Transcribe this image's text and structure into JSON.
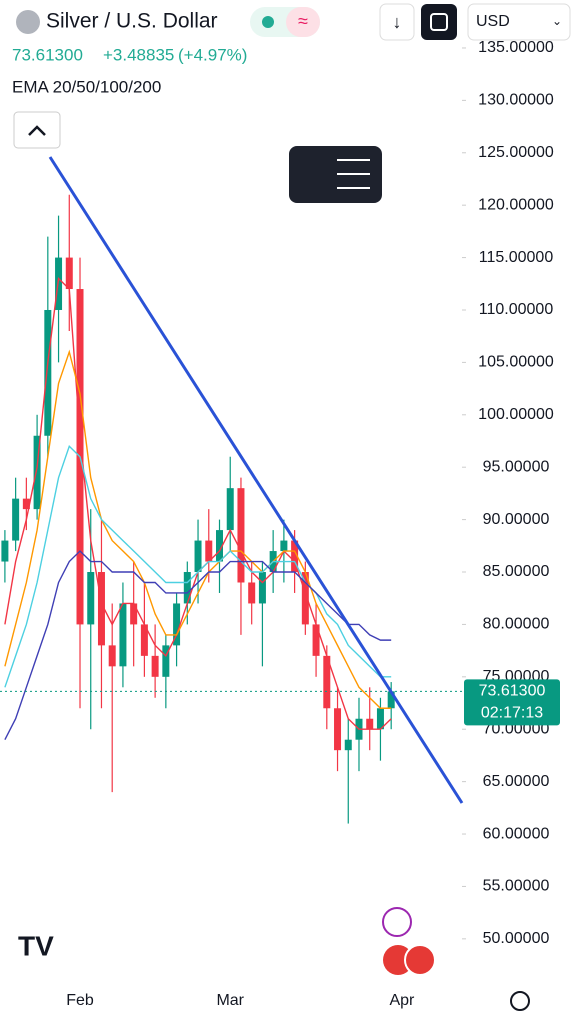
{
  "chart_data": {
    "type": "candlestick",
    "title": "Silver / U.S. Dollar",
    "price_text": "73.61300",
    "change_text": "+3.48835",
    "change_pct_text": "(+4.97%)",
    "indicator": "EMA 20/50/100/200",
    "currency": "USD",
    "countdown": "02:17:13",
    "up_color": "#089981",
    "down_color": "#f23645",
    "categories": [
      null,
      null,
      null,
      null,
      null,
      null,
      null,
      "Feb",
      null,
      null,
      null,
      null,
      null,
      null,
      null,
      null,
      null,
      null,
      null,
      null,
      null,
      "Mar",
      null,
      null,
      null,
      null,
      null,
      null,
      null,
      null,
      null,
      null,
      null,
      null,
      null,
      null,
      null,
      "Apr"
    ],
    "open": [
      86,
      88,
      92,
      91,
      98,
      110,
      115,
      112,
      80,
      85,
      78,
      76,
      82,
      80,
      77,
      75,
      78,
      82,
      85,
      88,
      86,
      89,
      93,
      84,
      82,
      85,
      87,
      88,
      85,
      80,
      77,
      72,
      68,
      69,
      71,
      70,
      72,
      null
    ],
    "high": [
      89,
      94,
      94,
      100,
      117,
      119,
      121,
      115,
      91,
      90,
      82,
      84,
      86,
      84,
      80,
      79,
      83,
      86,
      90,
      91,
      90,
      96,
      94,
      86,
      86,
      89,
      90,
      89,
      86,
      82,
      78,
      74,
      71,
      73,
      74,
      73,
      74.5,
      null
    ],
    "low": [
      84,
      87,
      89,
      90,
      96,
      105,
      108,
      72,
      70,
      72,
      64,
      74,
      76,
      75,
      73,
      72,
      76,
      80,
      82,
      84,
      83,
      87,
      79,
      80,
      76,
      83,
      84,
      83,
      79,
      75,
      70,
      66,
      61,
      66,
      68,
      67,
      70,
      null
    ],
    "close": [
      88,
      92,
      91,
      98,
      110,
      115,
      112,
      80,
      85,
      78,
      76,
      82,
      80,
      77,
      75,
      78,
      82,
      85,
      88,
      86,
      89,
      93,
      84,
      82,
      85,
      87,
      88,
      85,
      80,
      77,
      72,
      68,
      69,
      71,
      70,
      72,
      73.613,
      null
    ],
    "series": [
      {
        "color": "#f23645",
        "values": [
          80,
          86,
          90,
          95,
          105,
          113,
          112,
          98,
          88,
          82,
          80,
          82,
          82,
          80,
          78,
          77,
          79,
          82,
          85,
          86,
          87,
          89,
          87,
          85,
          84,
          85,
          87,
          86,
          83,
          80,
          77,
          74,
          71,
          70,
          70,
          70,
          71,
          null
        ]
      },
      {
        "color": "#ff9800",
        "values": [
          76,
          80,
          84,
          89,
          96,
          103,
          106,
          102,
          94,
          90,
          88,
          87,
          86,
          84,
          81,
          79,
          79,
          81,
          83,
          85,
          86,
          87,
          87,
          86,
          85,
          86,
          87,
          87,
          85,
          82,
          80,
          78,
          76,
          74,
          73,
          72,
          72,
          null
        ]
      },
      {
        "color": "#4dd0e1",
        "values": [
          74,
          77,
          80,
          84,
          89,
          94,
          97,
          96,
          92,
          90,
          89,
          88,
          87,
          86,
          85,
          84,
          84,
          84,
          85,
          86,
          86,
          87,
          86,
          85,
          85,
          86,
          86,
          86,
          84,
          83,
          81,
          80,
          78,
          77,
          76,
          75,
          75,
          null
        ]
      },
      {
        "color": "#3f3fb5",
        "values": [
          69,
          71,
          74,
          77,
          80,
          84,
          86,
          87,
          86,
          86,
          85,
          85,
          85,
          84,
          84,
          83,
          83,
          83,
          84,
          85,
          85,
          86,
          86,
          86,
          86,
          85,
          85,
          85,
          84,
          83,
          82,
          81,
          80,
          80,
          79,
          78.5,
          78.5,
          null
        ]
      }
    ],
    "ylim": [
      46.55,
      135.76
    ],
    "yticks": [
      {
        "value": 50,
        "label": "50.00000"
      },
      {
        "value": 55,
        "label": "55.00000"
      },
      {
        "value": 60,
        "label": "60.00000"
      },
      {
        "value": 65,
        "label": "65.00000"
      },
      {
        "value": 70,
        "label": "70.00000"
      },
      {
        "value": 75,
        "label": "75.00000"
      },
      {
        "value": 80,
        "label": "80.00000"
      },
      {
        "value": 85,
        "label": "85.00000"
      },
      {
        "value": 90,
        "label": "90.00000"
      },
      {
        "value": 95,
        "label": "95.00000"
      },
      {
        "value": 100,
        "label": "100.00000"
      },
      {
        "value": 105,
        "label": "105.00000"
      },
      {
        "value": 110,
        "label": "110.00000"
      },
      {
        "value": 115,
        "label": "115.00000"
      },
      {
        "value": 120,
        "label": "120.00000"
      },
      {
        "value": 125,
        "label": "125.00000"
      },
      {
        "value": 130,
        "label": "130.00000"
      },
      {
        "value": 135,
        "label": "135.00000"
      }
    ]
  }
}
